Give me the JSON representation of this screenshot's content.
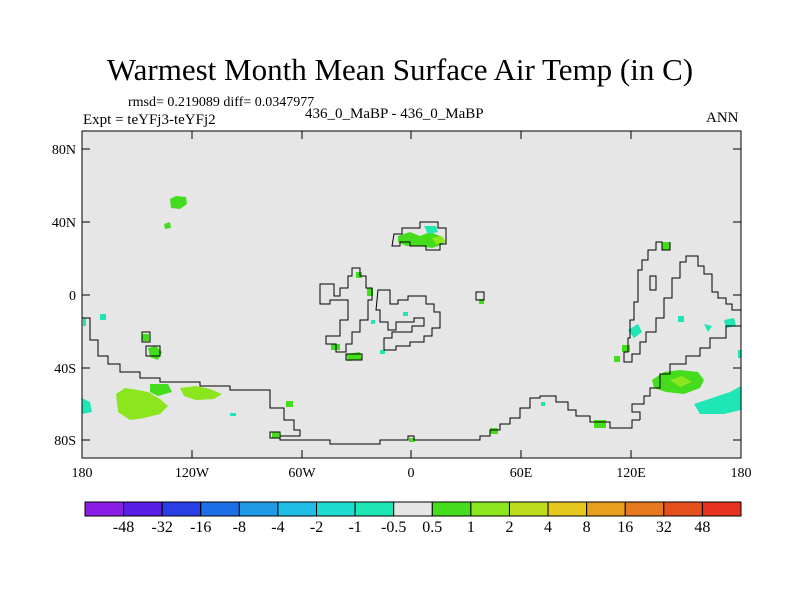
{
  "title": "Warmest Month Mean Surface Air Temp (in C)",
  "stats": "rmsd= 0.219089 diff= 0.0347977",
  "expt": "Expt = teYFj3-teYFj2",
  "center_label": "436_0_MaBP - 436_0_MaBP",
  "right_label": "ANN",
  "y_ticks": [
    "80N",
    "40N",
    "0",
    "40S",
    "80S"
  ],
  "x_ticks": [
    "180",
    "120W",
    "60W",
    "0",
    "60E",
    "120E",
    "180"
  ],
  "colorbar": {
    "labels": [
      "-48",
      "-32",
      "-16",
      "-8",
      "-4",
      "-2",
      "-1",
      "-0.5",
      "0.5",
      "1",
      "2",
      "4",
      "8",
      "16",
      "32",
      "48"
    ],
    "colors": [
      "#8a1ee6",
      "#5a1ee6",
      "#2a3ee6",
      "#1e6ee6",
      "#1e9ae6",
      "#1ebee6",
      "#1edcd0",
      "#1ee6b4",
      "#e6e6e6",
      "#46dc1e",
      "#8ce61e",
      "#bedc1e",
      "#e6c81e",
      "#e6a01e",
      "#e6781e",
      "#e6501e",
      "#e6321e"
    ]
  },
  "colors": {
    "background": "#e6e6e6",
    "land_outline": "#000000",
    "positive_small": "#46dc1e",
    "positive_mid": "#8ce61e",
    "negative_small": "#1ee6b4"
  }
}
